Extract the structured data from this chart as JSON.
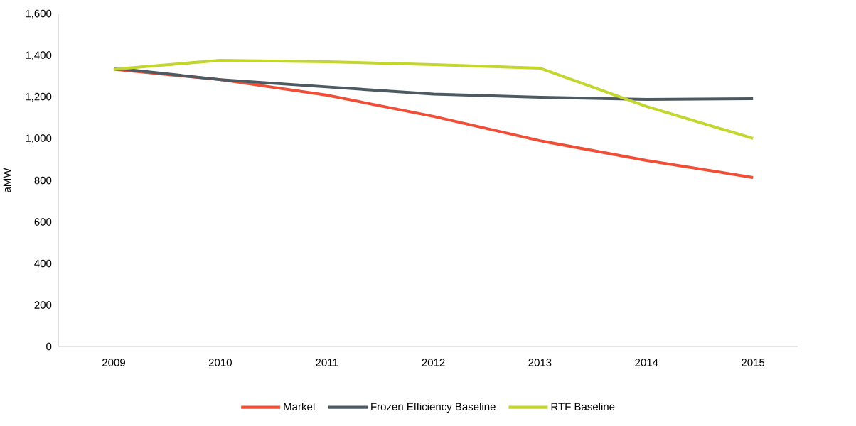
{
  "chart_data": {
    "type": "line",
    "ylabel": "aMW",
    "categories": [
      "2009",
      "2010",
      "2011",
      "2012",
      "2013",
      "2014",
      "2015"
    ],
    "series": [
      {
        "name": "Market",
        "color": "#f04e37",
        "values": [
          1335,
          1285,
          1210,
          1108,
          991,
          896,
          814
        ]
      },
      {
        "name": "Frozen Efficiency Baseline",
        "color": "#4d5a62",
        "values": [
          1340,
          1285,
          1250,
          1215,
          1200,
          1190,
          1193
        ]
      },
      {
        "name": "RTF Baseline",
        "color": "#c2d62e",
        "values": [
          1335,
          1378,
          1371,
          1357,
          1340,
          1156,
          1002
        ]
      }
    ],
    "ylim": [
      0,
      1600
    ],
    "yticks": [
      {
        "value": 0,
        "label": "0"
      },
      {
        "value": 200,
        "label": "200"
      },
      {
        "value": 400,
        "label": "400"
      },
      {
        "value": 600,
        "label": "600"
      },
      {
        "value": 800,
        "label": "800"
      },
      {
        "value": 1000,
        "label": "1,000"
      },
      {
        "value": 1200,
        "label": "1,200"
      },
      {
        "value": 1400,
        "label": "1,400"
      },
      {
        "value": 1600,
        "label": "1,600"
      }
    ],
    "grid": false,
    "legend": "bottom",
    "marker": "none",
    "line_style": "solid"
  }
}
